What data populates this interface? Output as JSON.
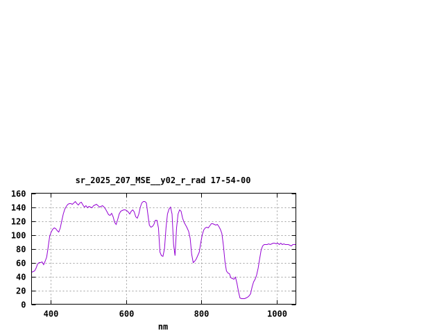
{
  "chart_data": {
    "type": "line",
    "title": "sr_2025_207_MSE__y02_r_rad 17-54-00",
    "xlabel": "nm",
    "ylabel": "",
    "xlim": [
      350,
      1050
    ],
    "ylim": [
      0,
      160
    ],
    "x_ticks": [
      400,
      600,
      800,
      1000
    ],
    "y_ticks": [
      0,
      20,
      40,
      60,
      80,
      100,
      120,
      140,
      160
    ],
    "grid": true,
    "series": [
      {
        "color": "#9400d3",
        "x": [
          350,
          358,
          362,
          366,
          370,
          374,
          378,
          382,
          386,
          390,
          394,
          398,
          402,
          406,
          410,
          414,
          418,
          422,
          426,
          430,
          434,
          438,
          442,
          446,
          450,
          454,
          458,
          462,
          466,
          470,
          474,
          478,
          482,
          486,
          490,
          494,
          498,
          502,
          506,
          510,
          514,
          518,
          522,
          526,
          530,
          534,
          538,
          542,
          546,
          550,
          554,
          558,
          562,
          566,
          570,
          574,
          578,
          582,
          586,
          590,
          594,
          598,
          602,
          606,
          610,
          614,
          618,
          622,
          626,
          630,
          634,
          638,
          642,
          646,
          650,
          654,
          658,
          662,
          666,
          670,
          674,
          678,
          682,
          686,
          690,
          694,
          698,
          702,
          706,
          710,
          714,
          718,
          722,
          726,
          730,
          734,
          738,
          742,
          746,
          750,
          754,
          758,
          762,
          766,
          770,
          774,
          778,
          782,
          786,
          790,
          794,
          798,
          802,
          806,
          810,
          814,
          818,
          822,
          826,
          830,
          834,
          838,
          842,
          846,
          850,
          854,
          858,
          862,
          866,
          870,
          874,
          878,
          882,
          886,
          890,
          894,
          898,
          902,
          906,
          910,
          914,
          918,
          922,
          926,
          930,
          934,
          938,
          942,
          946,
          950,
          954,
          958,
          962,
          966,
          970,
          974,
          978,
          982,
          986,
          990,
          994,
          998,
          1002,
          1006,
          1010,
          1014,
          1018,
          1022,
          1026,
          1030,
          1034,
          1038,
          1042,
          1046,
          1050
        ],
        "y": [
          46,
          48,
          52,
          58,
          60,
          60,
          61,
          57,
          62,
          68,
          82,
          98,
          104,
          108,
          110,
          109,
          106,
          104,
          110,
          120,
          130,
          137,
          141,
          144,
          145,
          145,
          144,
          146,
          148,
          145,
          143,
          146,
          147,
          143,
          140,
          142,
          139,
          141,
          140,
          139,
          142,
          143,
          144,
          142,
          140,
          141,
          142,
          140,
          137,
          133,
          129,
          128,
          131,
          126,
          118,
          115,
          122,
          130,
          134,
          135,
          136,
          136,
          135,
          133,
          130,
          134,
          136,
          133,
          126,
          124,
          130,
          140,
          146,
          148,
          148,
          146,
          130,
          114,
          111,
          112,
          115,
          121,
          121,
          110,
          75,
          70,
          69,
          80,
          110,
          130,
          137,
          140,
          130,
          86,
          70,
          110,
          130,
          136,
          134,
          124,
          118,
          114,
          110,
          105,
          95,
          72,
          60,
          62,
          65,
          70,
          75,
          88,
          100,
          107,
          110,
          111,
          110,
          113,
          116,
          116,
          115,
          114,
          115,
          112,
          108,
          102,
          85,
          62,
          48,
          45,
          44,
          38,
          37,
          36,
          39,
          30,
          18,
          9,
          8,
          8,
          8,
          9,
          10,
          12,
          15,
          25,
          32,
          36,
          42,
          52,
          65,
          78,
          84,
          86,
          86,
          86,
          87,
          86,
          87,
          88,
          88,
          87,
          88,
          86,
          88,
          86,
          87,
          86,
          86,
          86,
          85,
          84,
          86,
          86,
          86
        ]
      }
    ]
  }
}
